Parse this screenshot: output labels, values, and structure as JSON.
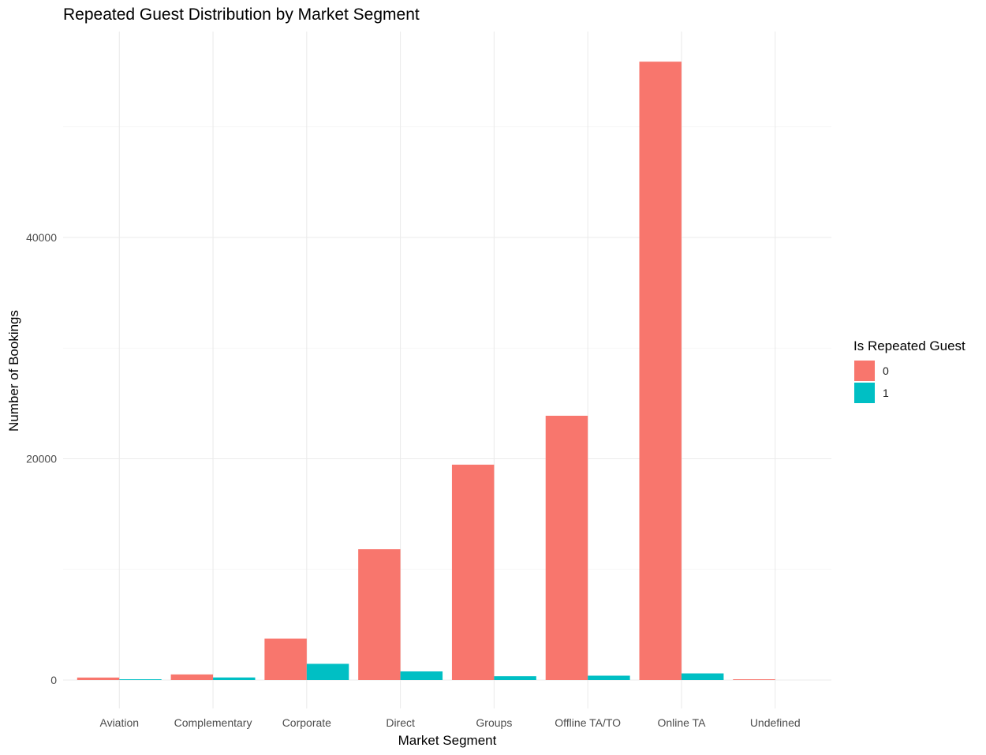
{
  "chart_data": {
    "type": "bar",
    "title": "Repeated Guest Distribution by Market Segment",
    "xlabel": "Market Segment",
    "ylabel": "Number of Bookings",
    "categories": [
      "Aviation",
      "Complementary",
      "Corporate",
      "Direct",
      "Groups",
      "Offline TA/TO",
      "Online TA",
      "Undefined"
    ],
    "series": [
      {
        "name": "0",
        "color": "#F8766D",
        "values": [
          227,
          508,
          3742,
          11824,
          19466,
          23887,
          55889,
          2
        ]
      },
      {
        "name": "1",
        "color": "#00BFC4",
        "values": [
          10,
          235,
          1466,
          780,
          345,
          395,
          602,
          0
        ]
      }
    ],
    "ylim": [
      0,
      56000
    ],
    "yticks": [
      0,
      20000,
      40000
    ],
    "yticks_minor": [
      10000,
      30000,
      50000
    ],
    "grid": true,
    "legend": {
      "title": "Is Repeated Guest",
      "position": "right"
    }
  }
}
